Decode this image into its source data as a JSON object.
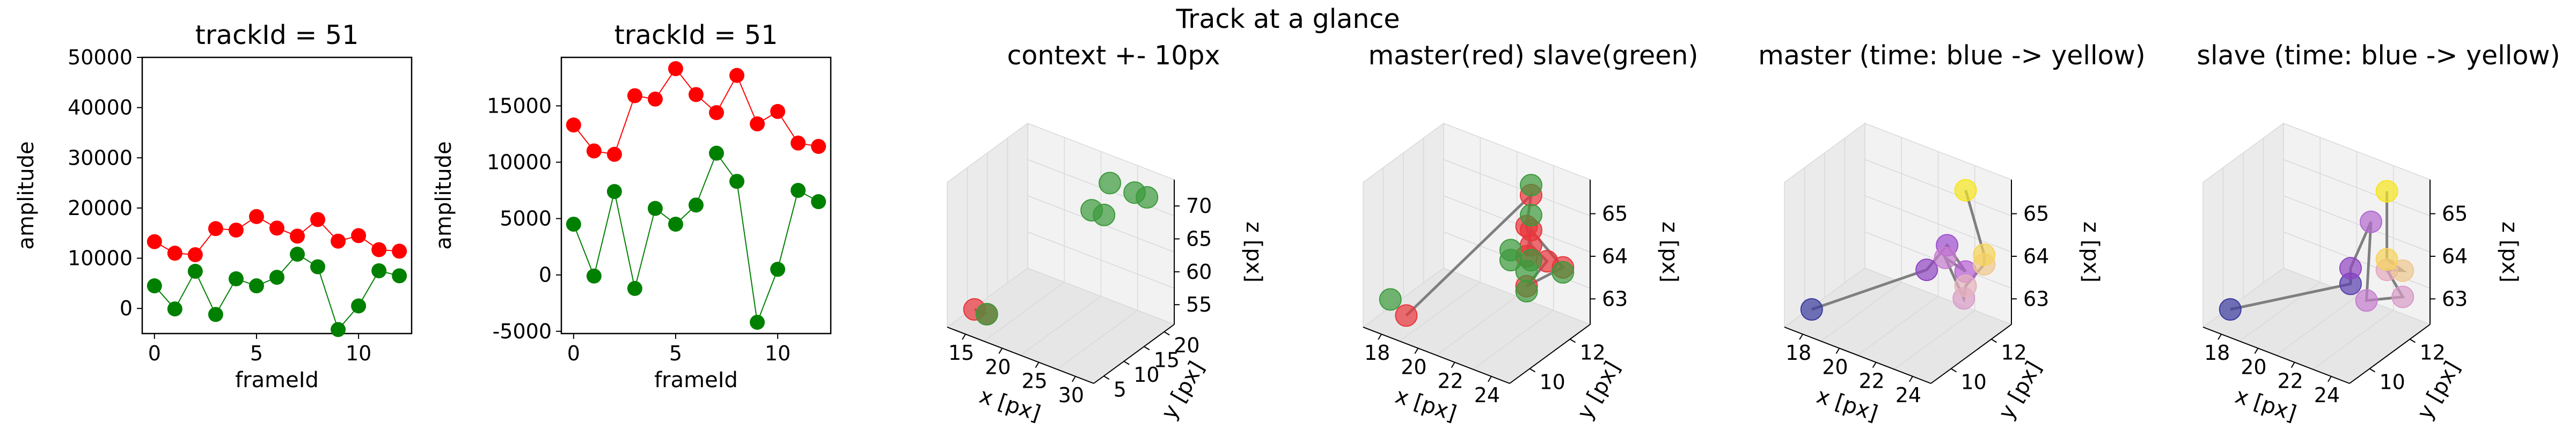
{
  "suptitle": "Track at a glance",
  "colors": {
    "red": "#ff0000",
    "green": "#008000",
    "red3d": "#e8353a",
    "green3d": "#3c9a3c",
    "track_line": "#7f7f7f",
    "axis": "#000000",
    "pane": "#f2f2f2",
    "grid": "#d9d9d9"
  },
  "chart_data": [
    {
      "type": "line",
      "title": "trackId = 51",
      "xlabel": "frameId",
      "ylabel": "amplitude",
      "x": [
        0,
        1,
        2,
        3,
        4,
        5,
        6,
        7,
        8,
        9,
        10,
        11,
        12
      ],
      "xlim": [
        -0.6,
        12.6
      ],
      "ylim": [
        -5000,
        50000
      ],
      "xticks": [
        0,
        5,
        10
      ],
      "yticks": [
        0,
        10000,
        20000,
        30000,
        40000,
        50000
      ],
      "series": [
        {
          "color": "#ff0000",
          "values": [
            13300,
            11000,
            10700,
            15900,
            15600,
            18300,
            16000,
            14400,
            17700,
            13400,
            14500,
            11700,
            11400
          ]
        },
        {
          "color": "#008000",
          "values": [
            4500,
            -100,
            7400,
            -1200,
            5900,
            4500,
            6200,
            10800,
            8300,
            -4200,
            500,
            7500,
            6500
          ]
        }
      ]
    },
    {
      "type": "line",
      "title": "trackId = 51",
      "xlabel": "frameId",
      "ylabel": "amplitude",
      "x": [
        0,
        1,
        2,
        3,
        4,
        5,
        6,
        7,
        8,
        9,
        10,
        11,
        12
      ],
      "xlim": [
        -0.6,
        12.6
      ],
      "ylim": [
        -5200,
        19300
      ],
      "xticks": [
        0,
        5,
        10
      ],
      "yticks": [
        -5000,
        0,
        5000,
        10000,
        15000
      ],
      "series": [
        {
          "color": "#ff0000",
          "values": [
            13300,
            11000,
            10700,
            15900,
            15600,
            18300,
            16000,
            14400,
            17700,
            13400,
            14500,
            11700,
            11400
          ]
        },
        {
          "color": "#008000",
          "values": [
            4500,
            -100,
            7400,
            -1200,
            5900,
            4500,
            6200,
            10800,
            8300,
            -4200,
            500,
            7500,
            6500
          ]
        }
      ]
    },
    {
      "type": "scatter",
      "projection": "3d",
      "title": "context +- 10px",
      "xlabel": "x [px]",
      "ylabel": "y [px]",
      "zlabel": "z [px]",
      "xticks": [
        "15",
        "20",
        "25",
        "30"
      ],
      "yticks": [
        "5",
        "10",
        "15",
        "20"
      ],
      "zticks": [
        "55",
        "60",
        "65",
        "70"
      ],
      "series": [
        {
          "name": "master",
          "color": "#e8353a",
          "points": [
            [
              14,
              10,
              62
            ],
            [
              15,
              10,
              62
            ]
          ]
        },
        {
          "name": "slave",
          "color": "#3c9a3c",
          "points": [
            [
              15,
              10,
              62
            ],
            [
              20,
              12,
              63
            ],
            [
              21,
              11,
              63
            ],
            [
              22,
              11,
              63
            ],
            [
              23,
              12,
              63
            ],
            [
              22,
              12,
              63
            ]
          ]
        }
      ]
    },
    {
      "type": "scatter",
      "projection": "3d",
      "title": "master(red) slave(green)",
      "xlabel": "x [px]",
      "ylabel": "y [px]",
      "zlabel": "z [px]",
      "xticks": [
        "18",
        "20",
        "22",
        "24"
      ],
      "yticks": [
        "10",
        "12"
      ],
      "zticks": [
        "63",
        "64",
        "65"
      ],
      "series": [
        {
          "name": "master",
          "color": "#e8353a",
          "points": [
            [
              17,
              9,
              62.6
            ],
            [
              21,
              12,
              64.6
            ],
            [
              22,
              11,
              64.4
            ],
            [
              21,
              12,
              63.6
            ],
            [
              22,
              12,
              63.4
            ],
            [
              22,
              11,
              63.2
            ],
            [
              23,
              12,
              63.4
            ],
            [
              21,
              12,
              63.9
            ],
            [
              22,
              11,
              63.8
            ]
          ]
        },
        {
          "name": "slave",
          "color": "#3c9a3c",
          "points": [
            [
              16,
              9,
              62.8
            ],
            [
              21,
              12,
              64.8
            ],
            [
              21,
              12,
              64.2
            ],
            [
              21,
              11,
              63.6
            ],
            [
              22,
              11,
              63.5
            ],
            [
              23,
              12,
              63.3
            ],
            [
              21,
              12,
              63.3
            ],
            [
              22,
              11,
              63.1
            ],
            [
              21,
              11,
              63.8
            ]
          ]
        }
      ]
    },
    {
      "type": "scatter",
      "projection": "3d",
      "title": "master (time: blue -> yellow)",
      "xlabel": "x [px]",
      "ylabel": "y [px]",
      "zlabel": "z [px]",
      "xticks": [
        "18",
        "20",
        "22",
        "24"
      ],
      "yticks": [
        "10",
        "12"
      ],
      "zticks": [
        "63",
        "64",
        "65"
      ],
      "series": [
        {
          "name": "master",
          "colors": [
            "#3b3aa0",
            "#8f45c2",
            "#a04ed0",
            "#b860d6",
            "#c77dd0",
            "#d89bc8",
            "#e6b2bd",
            "#f0c88e",
            "#f7d45a",
            "#f6e51f"
          ],
          "points": [
            [
              17,
              9,
              62.6
            ],
            [
              21,
              11,
              63.4
            ],
            [
              21,
              12,
              63.6
            ],
            [
              22,
              12,
              63.2
            ],
            [
              22,
              11,
              63.8
            ],
            [
              23,
              11,
              63.1
            ],
            [
              22,
              12,
              62.9
            ],
            [
              23,
              12,
              63.5
            ],
            [
              23,
              12,
              63.7
            ],
            [
              22,
              12,
              64.9
            ]
          ]
        }
      ]
    },
    {
      "type": "scatter",
      "projection": "3d",
      "title": "slave (time: blue -> yellow)",
      "xlabel": "x [px]",
      "ylabel": "y [px]",
      "zlabel": "z [px]",
      "xticks": [
        "18",
        "20",
        "22",
        "24"
      ],
      "yticks": [
        "10",
        "12"
      ],
      "zticks": [
        "63",
        "64",
        "65"
      ],
      "series": [
        {
          "name": "slave",
          "colors": [
            "#3b3aa0",
            "#5a3fae",
            "#8f45c2",
            "#b36ad0",
            "#c77dd0",
            "#d89bc8",
            "#e6a8be",
            "#f0c88e",
            "#f7d45a",
            "#f6e51f"
          ],
          "points": [
            [
              16,
              9,
              62.8
            ],
            [
              21,
              11,
              63.3
            ],
            [
              21,
              11,
              63.6
            ],
            [
              21,
              12,
              64.2
            ],
            [
              22,
              11,
              63.1
            ],
            [
              23,
              12,
              63.0
            ],
            [
              22,
              12,
              63.4
            ],
            [
              23,
              12,
              63.5
            ],
            [
              22,
              12,
              63.6
            ],
            [
              22,
              12,
              64.9
            ]
          ]
        }
      ]
    }
  ]
}
